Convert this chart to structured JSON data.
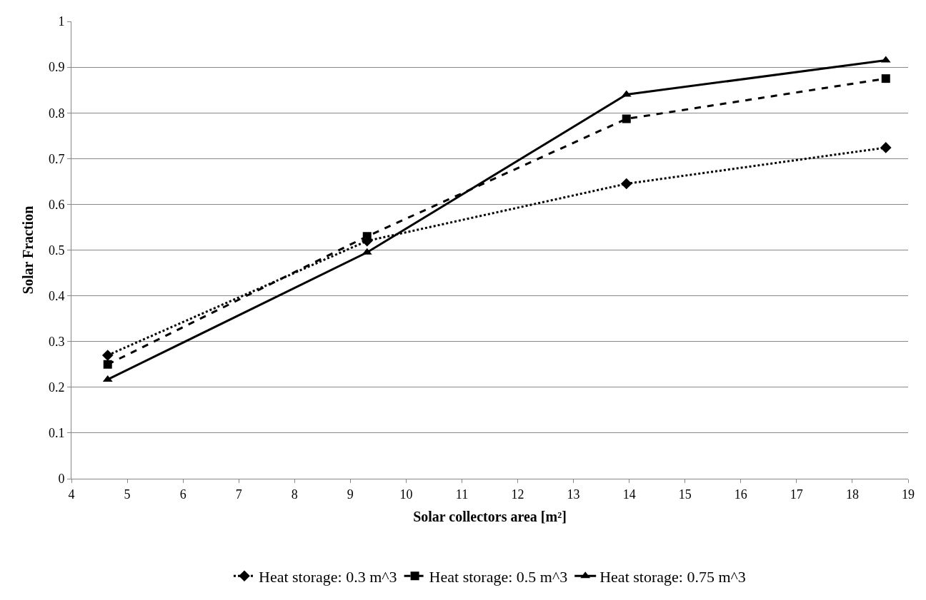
{
  "chart_data": {
    "type": "line",
    "xlabel": "Solar collectors area [m²]",
    "ylabel": "Solar Fraction",
    "x": [
      4.65,
      9.3,
      13.95,
      18.6
    ],
    "series": [
      {
        "name": "Heat storage: 0.3 m^3",
        "color": "#000000",
        "values": [
          0.27,
          0.52,
          0.645,
          0.724
        ],
        "marker": "diamond",
        "line_style": "dotted"
      },
      {
        "name": "Heat storage: 0.5 m^3",
        "color": "#000000",
        "values": [
          0.25,
          0.53,
          0.787,
          0.875
        ],
        "marker": "square",
        "line_style": "dashed"
      },
      {
        "name": "Heat storage: 0.75 m^3",
        "color": "#000000",
        "values": [
          0.217,
          0.495,
          0.84,
          0.915
        ],
        "marker": "triangle",
        "line_style": "solid"
      }
    ],
    "xlim": [
      4,
      19
    ],
    "xticks": [
      4,
      5,
      6,
      7,
      8,
      9,
      10,
      11,
      12,
      13,
      14,
      15,
      16,
      17,
      18,
      19
    ],
    "ylim": [
      0,
      1
    ],
    "yticks": [
      0,
      0.1,
      0.2,
      0.3,
      0.4,
      0.5,
      0.6,
      0.7,
      0.8,
      0.9,
      1
    ],
    "grid": "y",
    "legend": "bottom"
  }
}
